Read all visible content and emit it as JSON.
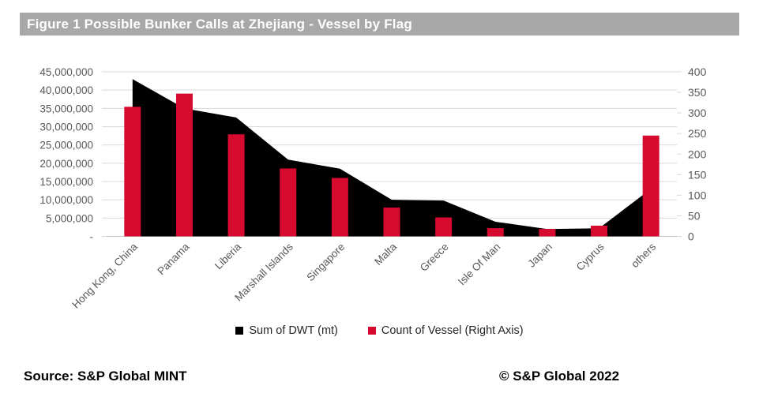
{
  "title": "Figure 1 Possible Bunker Calls at Zhejiang - Vessel by Flag",
  "footer": {
    "source": "Source: S&P Global MINT",
    "copyright": "©  S&P Global 2022"
  },
  "legend": [
    {
      "label": "Sum of DWT (mt)",
      "color": "#000000"
    },
    {
      "label": "Count of Vessel (Right Axis)",
      "color": "#D6092F"
    }
  ],
  "colors": {
    "bar_red": "#D6092F",
    "area_black": "#000000",
    "title_bg": "#A8A8A8",
    "gridline": "#D9D9D9",
    "axis_text": "#595959",
    "baseline": "#BFBFBF"
  },
  "chart_data": {
    "type": "combo",
    "categories": [
      "Hong Kong, China",
      "Panama",
      "Liberia",
      "Marshall Islands",
      "Singapore",
      "Malta",
      "Greece",
      "Isle Of Man",
      "Japan",
      "Cyprus",
      "others"
    ],
    "series": [
      {
        "name": "Sum of DWT (mt)",
        "type": "area",
        "axis": "left",
        "color": "#000000",
        "values": [
          43000000,
          35000000,
          32500000,
          21000000,
          18500000,
          10000000,
          9800000,
          4000000,
          2000000,
          2200000,
          13000000
        ]
      },
      {
        "name": "Count of Vessel (Right Axis)",
        "type": "bar",
        "axis": "right",
        "color": "#D6092F",
        "values": [
          315,
          347,
          248,
          165,
          142,
          70,
          46,
          20,
          18,
          26,
          245
        ]
      }
    ],
    "left_axis": {
      "min": 0,
      "max": 45000000,
      "step": 5000000,
      "tick_labels": [
        "45,000,000",
        "40,000,000",
        "35,000,000",
        "30,000,000",
        "25,000,000",
        "20,000,000",
        "15,000,000",
        "10,000,000",
        "5,000,000",
        "-"
      ]
    },
    "right_axis": {
      "min": 0,
      "max": 400,
      "step": 50,
      "tick_labels": [
        "400",
        "350",
        "300",
        "250",
        "200",
        "150",
        "100",
        "50",
        "0"
      ]
    },
    "grid": true,
    "legend_position": "bottom",
    "x_label_rotation": -45
  }
}
